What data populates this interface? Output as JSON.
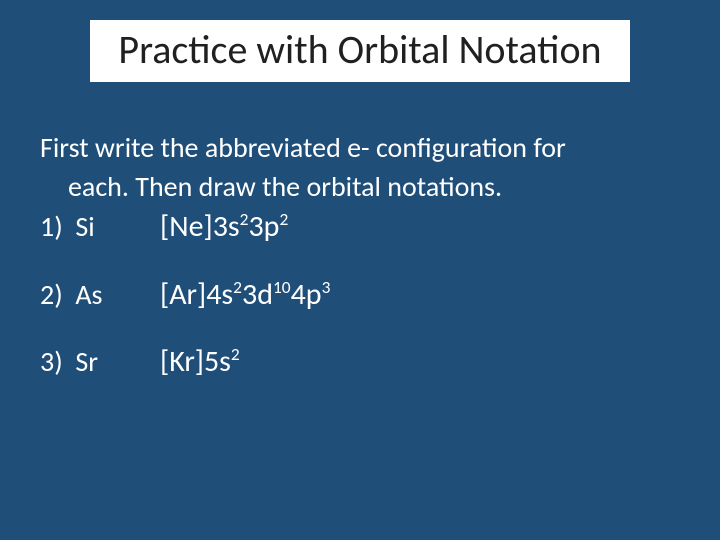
{
  "slide": {
    "background_color": "#1f4e79",
    "title_background_color": "#ffffff",
    "title_text_color": "#202020",
    "body_text_color": "#ffffff",
    "title_fontsize": 40,
    "body_fontsize": 28,
    "config_fontsize": 30,
    "title": "Practice with Orbital Notation",
    "instruction_line1": "First write the abbreviated e- configuration for",
    "instruction_line2": "each.  Then draw the orbital notations.",
    "items": [
      {
        "number": "1)",
        "element": "Si",
        "config_parts": [
          {
            "t": "text",
            "v": "[Ne]3s"
          },
          {
            "t": "sup",
            "v": "2"
          },
          {
            "t": "text",
            "v": "3p"
          },
          {
            "t": "sup",
            "v": "2"
          }
        ]
      },
      {
        "number": "2)",
        "element": "As",
        "config_parts": [
          {
            "t": "text",
            "v": "[Ar]4s"
          },
          {
            "t": "sup",
            "v": "2"
          },
          {
            "t": "text",
            "v": "3d"
          },
          {
            "t": "sup",
            "v": "10"
          },
          {
            "t": "text",
            "v": "4p"
          },
          {
            "t": "sup",
            "v": "3"
          }
        ]
      },
      {
        "number": "3)",
        "element": "Sr",
        "config_parts": [
          {
            "t": "text",
            "v": "[Kr]5s"
          },
          {
            "t": "sup",
            "v": "2"
          }
        ]
      }
    ]
  }
}
